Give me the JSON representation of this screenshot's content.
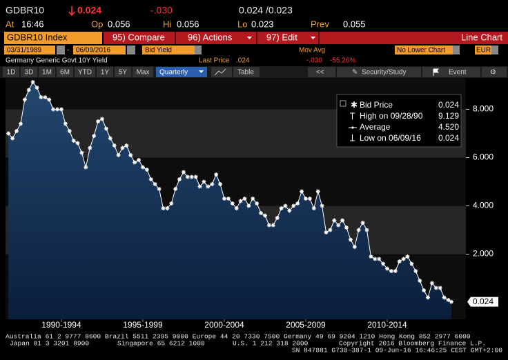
{
  "header": {
    "ticker": "GDBR10",
    "net_change": "0.024",
    "pct_change": "-.030",
    "bid_ask": "0.024 /0.023",
    "quote": [
      {
        "label": "At",
        "value": "16:46"
      },
      {
        "label": "Op",
        "value": "0.056"
      },
      {
        "label": "Hi",
        "value": "0.056"
      },
      {
        "label": "Lo",
        "value": "0.023"
      },
      {
        "label": "Prev",
        "value": "0.055"
      }
    ]
  },
  "menu": {
    "security": "GDBR10 Index",
    "compare": "95) Compare",
    "actions": "96) Actions",
    "edit": "97) Edit",
    "chart_type": "Line Chart"
  },
  "controls": {
    "start_date": "03/31/1989",
    "separator": "-",
    "end_date": "06/09/2016",
    "field": "Bid Yield",
    "study": "Mov Avg",
    "lower_chart": "No Lower Chart",
    "currency": "EUR"
  },
  "info": {
    "description": "Germany Generic Govt 10Y Yield",
    "last_price_label": "Last Price",
    "last_price": ".024",
    "change": "-.030",
    "change_pct": "-55.26%"
  },
  "toolbar": {
    "ranges": [
      "1D",
      "3D",
      "1M",
      "6M",
      "YTD",
      "1Y",
      "5Y",
      "Max"
    ],
    "frequency": "Quarterly",
    "table": "Table",
    "security_study": "Security/Study",
    "event": "Event"
  },
  "legend": [
    {
      "label": "Bid Price",
      "value": "0.024"
    },
    {
      "label": "High on 09/28/90",
      "value": "9.129"
    },
    {
      "label": "Average",
      "value": "4.520"
    },
    {
      "label": "Low on 06/09/16",
      "value": "0.024"
    }
  ],
  "last_value_label": "0.024",
  "chart_data": {
    "type": "line",
    "color": "#ffffff",
    "area_color": "#1b3a63",
    "x": [
      1989.25,
      1989.5,
      1989.75,
      1990,
      1990.25,
      1990.5,
      1990.75,
      1991,
      1991.25,
      1991.5,
      1991.75,
      1992,
      1992.25,
      1992.5,
      1992.75,
      1993,
      1993.25,
      1993.5,
      1993.75,
      1994,
      1994.25,
      1994.5,
      1994.75,
      1995,
      1995.25,
      1995.5,
      1995.75,
      1996,
      1996.25,
      1996.5,
      1996.75,
      1997,
      1997.25,
      1997.5,
      1997.75,
      1998,
      1998.25,
      1998.5,
      1998.75,
      1999,
      1999.25,
      1999.5,
      1999.75,
      2000,
      2000.25,
      2000.5,
      2000.75,
      2001,
      2001.25,
      2001.5,
      2001.75,
      2002,
      2002.25,
      2002.5,
      2002.75,
      2003,
      2003.25,
      2003.5,
      2003.75,
      2004,
      2004.25,
      2004.5,
      2004.75,
      2005,
      2005.25,
      2005.5,
      2005.75,
      2006,
      2006.25,
      2006.5,
      2006.75,
      2007,
      2007.25,
      2007.5,
      2007.75,
      2008,
      2008.25,
      2008.5,
      2008.75,
      2009,
      2009.25,
      2009.5,
      2009.75,
      2010,
      2010.25,
      2010.5,
      2010.75,
      2011,
      2011.25,
      2011.5,
      2011.75,
      2012,
      2012.25,
      2012.5,
      2012.75,
      2013,
      2013.25,
      2013.5,
      2013.75,
      2014,
      2014.25,
      2014.5,
      2014.75,
      2015,
      2015.25,
      2015.5,
      2015.75,
      2016,
      2016.25,
      2016.44
    ],
    "values": [
      7.0,
      6.8,
      7.1,
      7.4,
      8.4,
      8.8,
      9.13,
      8.9,
      8.5,
      8.5,
      8.4,
      8.0,
      8.0,
      8.0,
      7.4,
      7.1,
      6.7,
      6.6,
      6.2,
      5.6,
      6.4,
      6.9,
      7.5,
      7.6,
      7.2,
      6.8,
      6.5,
      6.1,
      6.4,
      6.5,
      6.1,
      5.8,
      5.9,
      5.6,
      5.5,
      5.1,
      4.9,
      4.7,
      3.9,
      3.9,
      4.1,
      4.7,
      5.1,
      5.4,
      5.2,
      5.2,
      5.2,
      4.8,
      5.0,
      4.8,
      4.9,
      5.3,
      4.9,
      4.3,
      4.3,
      4.1,
      3.9,
      4.2,
      4.3,
      4.0,
      4.3,
      4.1,
      3.7,
      3.6,
      3.2,
      3.2,
      3.5,
      3.9,
      4.0,
      3.8,
      4.0,
      4.1,
      4.6,
      4.3,
      4.3,
      3.9,
      4.6,
      4.0,
      2.9,
      3.0,
      3.4,
      3.2,
      3.4,
      3.1,
      2.6,
      2.3,
      3.0,
      3.3,
      3.0,
      1.9,
      1.8,
      1.8,
      1.6,
      1.4,
      1.3,
      1.3,
      1.7,
      1.8,
      1.9,
      1.6,
      1.3,
      0.9,
      0.5,
      0.2,
      0.8,
      0.6,
      0.6,
      0.2,
      0.1,
      0.024
    ],
    "xlim": [
      1989.07,
      2017.33
    ],
    "ylim": [
      -0.7,
      9.3
    ],
    "yticks": [
      {
        "value": 2,
        "label": "2.000"
      },
      {
        "value": 4,
        "label": "4.000"
      },
      {
        "value": 6,
        "label": "6.000"
      },
      {
        "value": 8,
        "label": "8.000"
      }
    ],
    "xticks": [
      {
        "value": 1992.5,
        "label": "1990-1994"
      },
      {
        "value": 1997.5,
        "label": "1995-1999"
      },
      {
        "value": 2002.5,
        "label": "2000-2004"
      },
      {
        "value": 2007.5,
        "label": "2005-2009"
      },
      {
        "value": 2012.5,
        "label": "2010-2014"
      }
    ]
  },
  "footer": {
    "line1": "Australia 61 2 9777 8600 Brazil 5511 2395 9000 Europe 44 20 7330 7500 Germany 49 69 9204 1210 Hong Kong 852 2977 6000",
    "line2": [
      "Japan 81 3 3201 8900",
      "Singapore 65 6212 1000",
      "U.S. 1 212 318 2000",
      "Copyright 2016 Bloomberg Finance L.P."
    ],
    "line3": "SN 847881 G730-387-1 09-Jun-16 16:46:25 CEST GMT+2:00"
  }
}
